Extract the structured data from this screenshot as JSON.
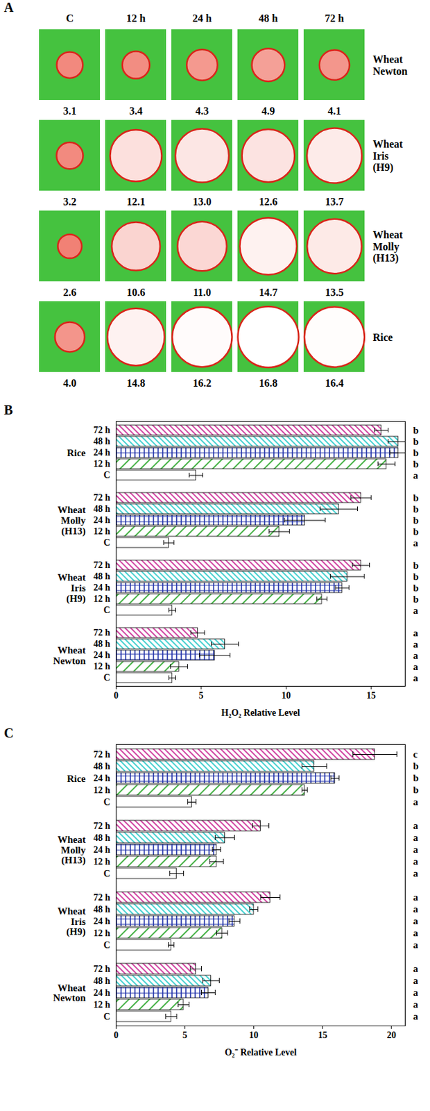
{
  "chart_data": [
    {
      "type": "image_grid",
      "title": "A",
      "columns": [
        "C",
        "12 h",
        "24 h",
        "48 h",
        "72 h"
      ],
      "rows": [
        "Wheat Newton",
        "Wheat Iris (H9)",
        "Wheat Molly (H13)",
        "Rice"
      ],
      "values": [
        [
          3.1,
          3.4,
          4.3,
          4.9,
          4.1
        ],
        [
          3.2,
          12.1,
          13.0,
          12.6,
          13.7
        ],
        [
          2.6,
          10.6,
          11.0,
          14.7,
          13.5
        ],
        [
          4.0,
          14.8,
          16.2,
          16.8,
          16.4
        ]
      ],
      "value_labels": [
        [
          "3.1",
          "3.4",
          "4.3",
          "4.9",
          "4.1"
        ],
        [
          "3.2",
          "12.1",
          "13.0",
          "12.6",
          "13.7"
        ],
        [
          "2.6",
          "10.6",
          "11.0",
          "14.7",
          "13.5"
        ],
        [
          "4.0",
          "14.8",
          "16.2",
          "16.8",
          "16.4"
        ]
      ]
    },
    {
      "type": "bar",
      "title": "B",
      "orientation": "horizontal",
      "x_label": "H₂O₂ Relative Level",
      "categories": [
        "Rice",
        "Wheat Molly (H13)",
        "Wheat Iris (H9)",
        "Wheat Newton"
      ],
      "series": [
        {
          "name": "72 h",
          "color": "#cc3399",
          "values": [
            15.6,
            14.4,
            14.4,
            4.8
          ],
          "errors": [
            0.4,
            0.6,
            0.5,
            0.4
          ],
          "letters": [
            "b",
            "b",
            "b",
            "a"
          ]
        },
        {
          "name": "48 h",
          "color": "#33cccc",
          "values": [
            16.6,
            13.1,
            13.6,
            6.4
          ],
          "errors": [
            0.6,
            1.1,
            1.0,
            0.8
          ],
          "letters": [
            "b",
            "b",
            "b",
            "a"
          ]
        },
        {
          "name": "24 h",
          "color": "#2233aa",
          "values": [
            16.6,
            11.1,
            13.3,
            5.8
          ],
          "errors": [
            0.5,
            1.2,
            0.4,
            0.9
          ],
          "letters": [
            "b",
            "b",
            "b",
            "a"
          ]
        },
        {
          "name": "12 h",
          "color": "#33aa33",
          "values": [
            15.9,
            9.6,
            12.1,
            3.7
          ],
          "errors": [
            0.5,
            0.6,
            0.3,
            0.5
          ],
          "letters": [
            "b",
            "b",
            "b",
            "a"
          ]
        },
        {
          "name": "C",
          "color": "#ffffff",
          "values": [
            4.7,
            3.1,
            3.3,
            3.3
          ],
          "errors": [
            0.4,
            0.3,
            0.2,
            0.2
          ],
          "letters": [
            "a",
            "a",
            "a",
            "a"
          ]
        }
      ],
      "xlim": [
        0,
        17
      ],
      "xticks": [
        0,
        5,
        10,
        15
      ]
    },
    {
      "type": "bar",
      "title": "C",
      "orientation": "horizontal",
      "x_label": "O₂⁻ Relative Level",
      "categories": [
        "Rice",
        "Wheat Molly (H13)",
        "Wheat Iris (H9)",
        "Wheat Newton"
      ],
      "series": [
        {
          "name": "72 h",
          "color": "#cc3399",
          "values": [
            18.8,
            10.5,
            11.2,
            5.8
          ],
          "errors": [
            1.6,
            0.6,
            0.7,
            0.4
          ],
          "letters": [
            "c",
            "a",
            "a",
            "a"
          ]
        },
        {
          "name": "48 h",
          "color": "#33cccc",
          "values": [
            14.4,
            7.9,
            10.0,
            6.9
          ],
          "errors": [
            0.9,
            0.7,
            0.3,
            0.6
          ],
          "letters": [
            "b",
            "a",
            "a",
            "a"
          ]
        },
        {
          "name": "24 h",
          "color": "#2233aa",
          "values": [
            15.9,
            7.3,
            8.6,
            6.7
          ],
          "errors": [
            0.3,
            0.3,
            0.4,
            0.5
          ],
          "letters": [
            "b",
            "a",
            "a",
            "a"
          ]
        },
        {
          "name": "12 h",
          "color": "#33aa33",
          "values": [
            13.7,
            7.3,
            7.7,
            4.9
          ],
          "errors": [
            0.2,
            0.5,
            0.4,
            0.4
          ],
          "letters": [
            "b",
            "a",
            "a",
            "a"
          ]
        },
        {
          "name": "C",
          "color": "#ffffff",
          "values": [
            5.5,
            4.4,
            4.0,
            4.0
          ],
          "errors": [
            0.3,
            0.5,
            0.2,
            0.4
          ],
          "letters": [
            "a",
            "a",
            "a",
            "a"
          ]
        }
      ],
      "xlim": [
        0,
        21
      ],
      "xticks": [
        0,
        5,
        10,
        15,
        20
      ]
    }
  ]
}
